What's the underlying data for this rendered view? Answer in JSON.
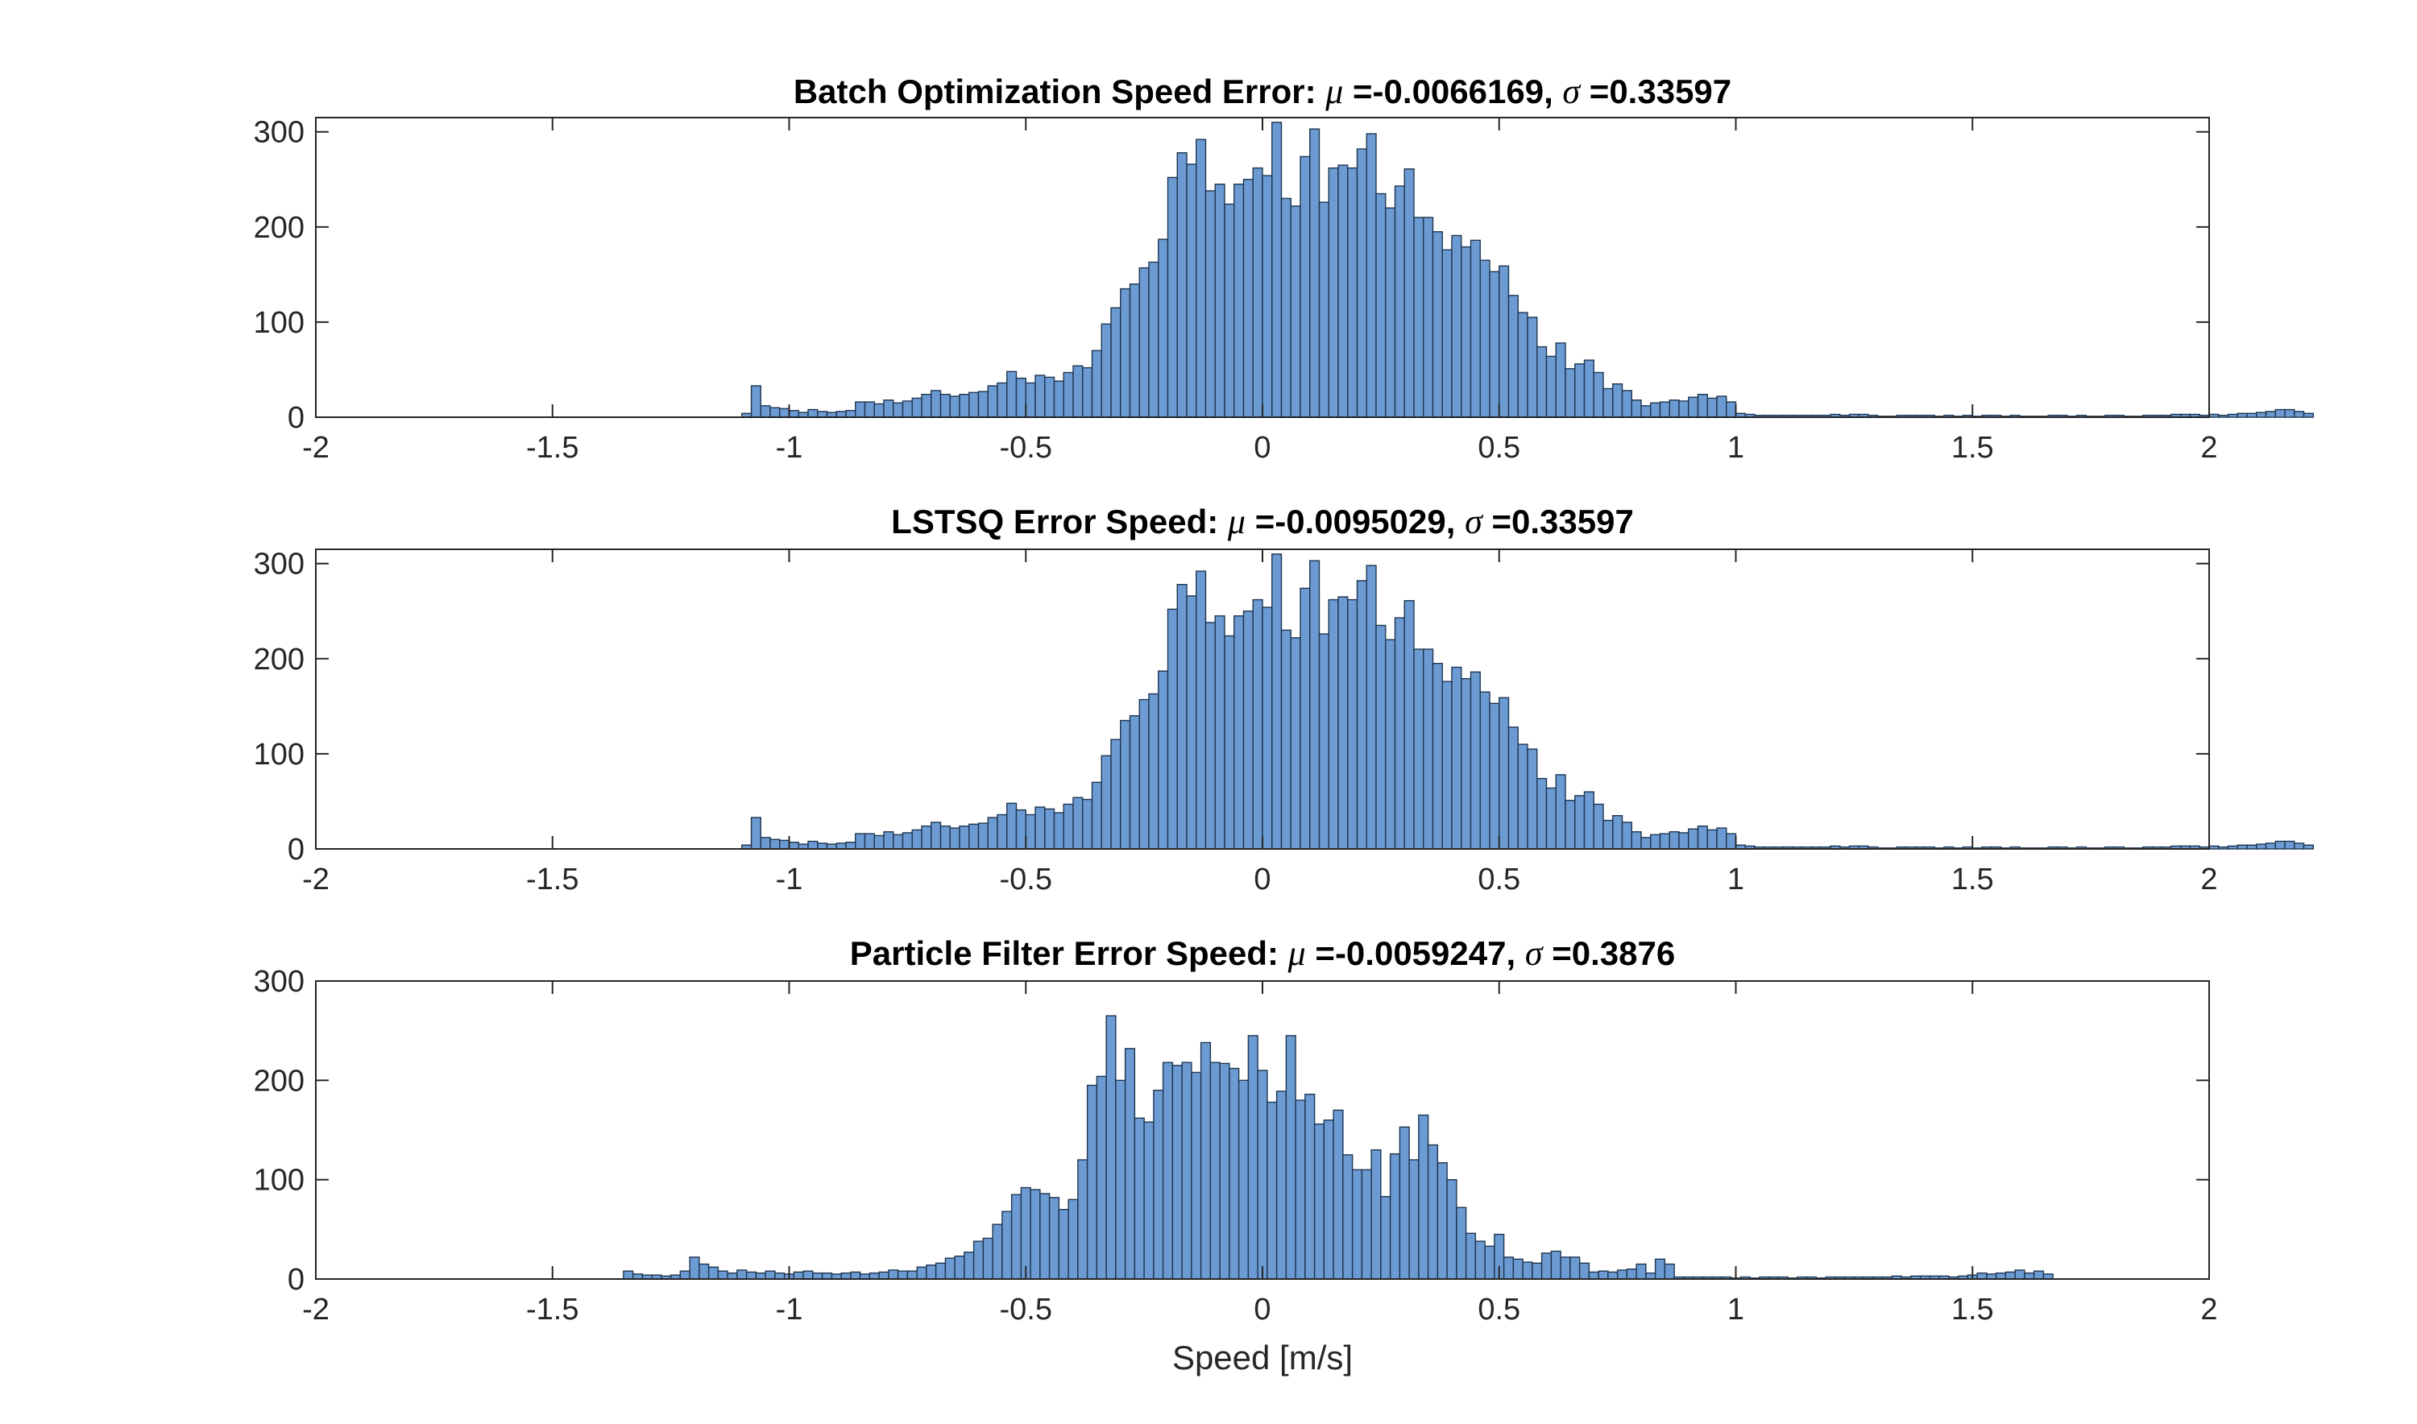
{
  "chart_data": [
    {
      "type": "histogram",
      "title_prefix": "Batch Optimization Speed Error:",
      "mu_symbol": "μ",
      "mu_text": "=-0.0066169,",
      "sigma_symbol": "σ",
      "sigma_text": "=0.33597",
      "xlim": [
        -2,
        2
      ],
      "ylim": [
        0,
        315
      ],
      "xticks": [
        "-2",
        "-1.5",
        "-1",
        "-0.5",
        "0",
        "0.5",
        "1",
        "1.5",
        "2"
      ],
      "yticks": [
        "0",
        "100",
        "200",
        "300"
      ],
      "xlabel": "",
      "bar_color": "#6b9bd2",
      "bin_start": -1.1,
      "bin_width": 0.02,
      "values": [
        4,
        33,
        12,
        10,
        9,
        7,
        5,
        8,
        6,
        5,
        6,
        7,
        16,
        16,
        14,
        18,
        15,
        17,
        20,
        24,
        28,
        24,
        22,
        24,
        26,
        27,
        33,
        36,
        48,
        41,
        36,
        44,
        42,
        38,
        47,
        54,
        52,
        70,
        98,
        115,
        135,
        140,
        157,
        163,
        187,
        252,
        278,
        266,
        292,
        238,
        245,
        224,
        245,
        250,
        262,
        254,
        310,
        230,
        222,
        274,
        303,
        226,
        262,
        265,
        262,
        282,
        298,
        235,
        220,
        243,
        261,
        210,
        210,
        195,
        176,
        191,
        179,
        186,
        165,
        153,
        159,
        128,
        110,
        105,
        74,
        64,
        78,
        51,
        56,
        60,
        47,
        30,
        35,
        28,
        18,
        12,
        15,
        16,
        18,
        17,
        21,
        24,
        20,
        22,
        16,
        4,
        3,
        2,
        2,
        2,
        2,
        2,
        2,
        2,
        2,
        3,
        2,
        3,
        3,
        2,
        1,
        1,
        2,
        2,
        2,
        2,
        1,
        2,
        1,
        2,
        1,
        2,
        2,
        1,
        2,
        1,
        1,
        1,
        2,
        2,
        1,
        2,
        1,
        1,
        2,
        2,
        1,
        1,
        2,
        2,
        2,
        3,
        3,
        3,
        2,
        3,
        2,
        3,
        4,
        4,
        5,
        6,
        8,
        8,
        6,
        4
      ]
    },
    {
      "type": "histogram",
      "title_prefix": "LSTSQ Error Speed:",
      "mu_symbol": "μ",
      "mu_text": "=-0.0095029,",
      "sigma_symbol": "σ",
      "sigma_text": "=0.33597",
      "xlim": [
        -2,
        2
      ],
      "ylim": [
        0,
        315
      ],
      "xticks": [
        "-2",
        "-1.5",
        "-1",
        "-0.5",
        "0",
        "0.5",
        "1",
        "1.5",
        "2"
      ],
      "yticks": [
        "0",
        "100",
        "200",
        "300"
      ],
      "xlabel": "",
      "bar_color": "#6b9bd2",
      "bin_start": -1.1,
      "bin_width": 0.02,
      "values": [
        4,
        33,
        12,
        10,
        9,
        7,
        5,
        8,
        6,
        5,
        6,
        7,
        16,
        16,
        14,
        18,
        15,
        17,
        20,
        24,
        28,
        24,
        22,
        24,
        26,
        27,
        33,
        36,
        48,
        41,
        36,
        44,
        42,
        38,
        47,
        54,
        52,
        70,
        98,
        115,
        135,
        140,
        157,
        163,
        187,
        252,
        278,
        266,
        292,
        238,
        245,
        224,
        245,
        250,
        262,
        254,
        310,
        230,
        222,
        274,
        303,
        226,
        262,
        265,
        262,
        282,
        298,
        235,
        220,
        243,
        261,
        210,
        210,
        195,
        176,
        191,
        179,
        186,
        165,
        153,
        159,
        128,
        110,
        105,
        74,
        64,
        78,
        51,
        56,
        60,
        47,
        30,
        35,
        28,
        18,
        12,
        15,
        16,
        18,
        17,
        21,
        24,
        20,
        22,
        16,
        4,
        3,
        2,
        2,
        2,
        2,
        2,
        2,
        2,
        2,
        3,
        2,
        3,
        3,
        2,
        1,
        1,
        2,
        2,
        2,
        2,
        1,
        2,
        1,
        2,
        1,
        2,
        2,
        1,
        2,
        1,
        1,
        1,
        2,
        2,
        1,
        2,
        1,
        1,
        2,
        2,
        1,
        1,
        2,
        2,
        2,
        3,
        3,
        3,
        2,
        3,
        2,
        3,
        4,
        4,
        5,
        6,
        8,
        8,
        6,
        4
      ]
    },
    {
      "type": "histogram",
      "title_prefix": "Particle Filter Error Speed:",
      "mu_symbol": "μ",
      "mu_text": "=-0.0059247,",
      "sigma_symbol": "σ",
      "sigma_text": "=0.3876",
      "xlim": [
        -2,
        2
      ],
      "ylim": [
        0,
        300
      ],
      "xticks": [
        "-2",
        "-1.5",
        "-1",
        "-0.5",
        "0",
        "0.5",
        "1",
        "1.5",
        "2"
      ],
      "yticks": [
        "0",
        "100",
        "200",
        "300"
      ],
      "xlabel": "Speed [m/s]",
      "bar_color": "#6b9bd2",
      "bin_start": -1.35,
      "bin_width": 0.02,
      "values": [
        8,
        5,
        4,
        4,
        3,
        4,
        8,
        22,
        15,
        12,
        8,
        6,
        9,
        7,
        6,
        8,
        6,
        5,
        7,
        8,
        6,
        6,
        5,
        6,
        7,
        5,
        6,
        7,
        9,
        8,
        8,
        12,
        14,
        16,
        21,
        23,
        27,
        38,
        41,
        55,
        68,
        85,
        92,
        90,
        86,
        82,
        70,
        80,
        120,
        195,
        204,
        265,
        200,
        232,
        162,
        158,
        190,
        218,
        215,
        218,
        208,
        238,
        218,
        217,
        212,
        200,
        245,
        210,
        178,
        189,
        245,
        180,
        186,
        156,
        160,
        170,
        125,
        110,
        110,
        130,
        83,
        126,
        153,
        120,
        165,
        135,
        117,
        100,
        72,
        46,
        38,
        33,
        45,
        22,
        20,
        17,
        16,
        26,
        28,
        22,
        22,
        16,
        7,
        8,
        7,
        9,
        10,
        15,
        6,
        20,
        15,
        2,
        2,
        2,
        2,
        2,
        2,
        1,
        2,
        1,
        2,
        2,
        2,
        1,
        2,
        2,
        1,
        2,
        2,
        2,
        2,
        2,
        2,
        2,
        3,
        2,
        3,
        3,
        3,
        3,
        2,
        3,
        4,
        6,
        5,
        6,
        7,
        9,
        6,
        8,
        5
      ]
    }
  ]
}
